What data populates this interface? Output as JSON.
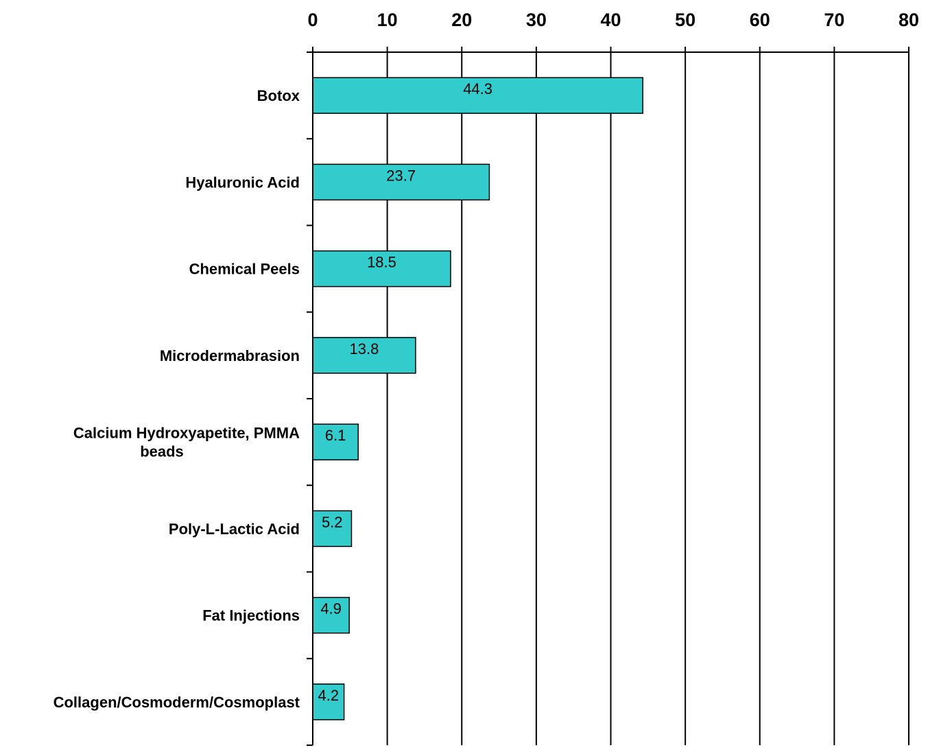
{
  "chart_data": {
    "type": "bar",
    "orientation": "horizontal",
    "categories": [
      [
        "Botox"
      ],
      [
        "Hyaluronic Acid"
      ],
      [
        "Chemical Peels"
      ],
      [
        "Microdermabrasion"
      ],
      [
        "Calcium Hydroxyapetite, PMMA",
        "beads"
      ],
      [
        "Poly-L-Lactic Acid"
      ],
      [
        "Fat Injections"
      ],
      [
        "Collagen/Cosmoderm/Cosmoplast"
      ]
    ],
    "values": [
      44.3,
      23.7,
      18.5,
      13.8,
      6.1,
      5.2,
      4.9,
      4.2
    ],
    "value_labels": [
      "44.3",
      "23.7",
      "18.5",
      "13.8",
      "6.1",
      "5.2",
      "4.9",
      "4.2"
    ],
    "xlim": [
      0,
      80
    ],
    "x_ticks": [
      0,
      10,
      20,
      30,
      40,
      50,
      60,
      70,
      80
    ],
    "x_axis_position": "top",
    "grid": true,
    "legend": "none",
    "colors": {
      "bar_fill": "#33CCCC",
      "bar_stroke": "#000000",
      "grid": "#000000"
    }
  }
}
